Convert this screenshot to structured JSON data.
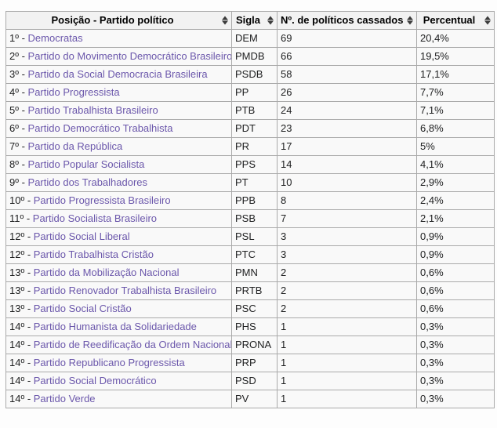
{
  "colors": {
    "table_background": "#f9f9f9",
    "header_background": "#f2f2f2",
    "border": "#aaaaaa",
    "link": "#6b57ab",
    "text": "#202122"
  },
  "icons": {
    "sort": "sort-both-arrows"
  },
  "table": {
    "headers": [
      {
        "label": "Posição - Partido político"
      },
      {
        "label": "Sigla"
      },
      {
        "label": "Nº. de políticos cassados"
      },
      {
        "label": "Percentual"
      }
    ],
    "rows": [
      {
        "pos": "1º - ",
        "party": "Democratas",
        "sigla": "DEM",
        "cassados": "69",
        "percentual": "20,4%"
      },
      {
        "pos": "2º - ",
        "party": "Partido do Movimento Democrático Brasileiro",
        "sigla": "PMDB",
        "cassados": "66",
        "percentual": "19,5%"
      },
      {
        "pos": "3º - ",
        "party": "Partido da Social Democracia Brasileira",
        "sigla": "PSDB",
        "cassados": "58",
        "percentual": "17,1%"
      },
      {
        "pos": "4º - ",
        "party": "Partido Progressista",
        "sigla": "PP",
        "cassados": "26",
        "percentual": "7,7%"
      },
      {
        "pos": "5º - ",
        "party": "Partido Trabalhista Brasileiro",
        "sigla": "PTB",
        "cassados": "24",
        "percentual": "7,1%"
      },
      {
        "pos": "6º - ",
        "party": "Partido Democrático Trabalhista",
        "sigla": "PDT",
        "cassados": "23",
        "percentual": "6,8%"
      },
      {
        "pos": "7º - ",
        "party": "Partido da República",
        "sigla": "PR",
        "cassados": "17",
        "percentual": "5%"
      },
      {
        "pos": "8º - ",
        "party": "Partido Popular Socialista",
        "sigla": "PPS",
        "cassados": "14",
        "percentual": "4,1%"
      },
      {
        "pos": "9º - ",
        "party": "Partido dos Trabalhadores",
        "sigla": "PT",
        "cassados": "10",
        "percentual": "2,9%"
      },
      {
        "pos": "10º - ",
        "party": "Partido Progressista Brasileiro",
        "sigla": "PPB",
        "cassados": "8",
        "percentual": "2,4%"
      },
      {
        "pos": "11º - ",
        "party": "Partido Socialista Brasileiro",
        "sigla": "PSB",
        "cassados": "7",
        "percentual": "2,1%"
      },
      {
        "pos": "12º - ",
        "party": "Partido Social Liberal",
        "sigla": "PSL",
        "cassados": "3",
        "percentual": "0,9%"
      },
      {
        "pos": "12º - ",
        "party": "Partido Trabalhista Cristão",
        "sigla": "PTC",
        "cassados": "3",
        "percentual": "0,9%"
      },
      {
        "pos": "13º - ",
        "party": "Partido da Mobilização Nacional",
        "sigla": "PMN",
        "cassados": "2",
        "percentual": "0,6%"
      },
      {
        "pos": "13º - ",
        "party": "Partido Renovador Trabalhista Brasileiro",
        "sigla": "PRTB",
        "cassados": "2",
        "percentual": "0,6%"
      },
      {
        "pos": "13º - ",
        "party": "Partido Social Cristão",
        "sigla": "PSC",
        "cassados": "2",
        "percentual": "0,6%"
      },
      {
        "pos": "14º - ",
        "party": "Partido Humanista da Solidariedade",
        "sigla": "PHS",
        "cassados": "1",
        "percentual": "0,3%"
      },
      {
        "pos": "14º - ",
        "party": "Partido de Reedificação da Ordem Nacional",
        "sigla": "PRONA",
        "cassados": "1",
        "percentual": "0,3%"
      },
      {
        "pos": "14º - ",
        "party": "Partido Republicano Progressista",
        "sigla": "PRP",
        "cassados": "1",
        "percentual": "0,3%"
      },
      {
        "pos": "14º - ",
        "party": "Partido Social Democrático",
        "sigla": "PSD",
        "cassados": "1",
        "percentual": "0,3%"
      },
      {
        "pos": "14º - ",
        "party": "Partido Verde",
        "sigla": "PV",
        "cassados": "1",
        "percentual": "0,3%"
      }
    ]
  }
}
